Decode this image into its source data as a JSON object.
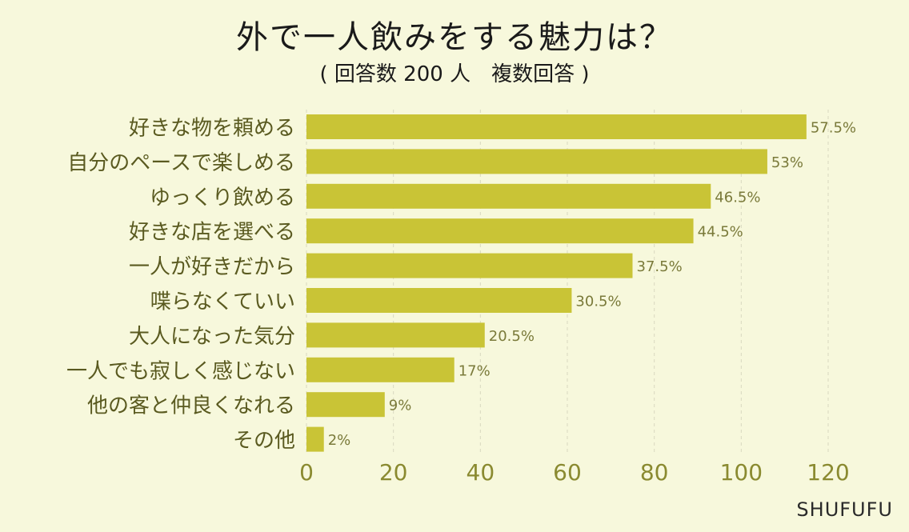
{
  "chart_data": {
    "type": "bar",
    "orientation": "horizontal",
    "title": "外で一人飲みをする魅力は？",
    "subtitle": "( 回答数 200 人　複数回答 )",
    "categories": [
      "好きな物を頼める",
      "自分のペースで楽しめる",
      "ゆっくり飲める",
      "好きな店を選べる",
      "一人が好きだから",
      "喋らなくていい",
      "大人になった気分",
      "一人でも寂しく感じない",
      "他の客と仲良くなれる",
      "その他"
    ],
    "values": [
      115,
      106,
      93,
      89,
      75,
      61,
      41,
      34,
      18,
      4
    ],
    "data_labels": [
      "57.5%",
      "53%",
      "46.5%",
      "44.5%",
      "37.5%",
      "30.5%",
      "20.5%",
      "17%",
      "9%",
      "2%"
    ],
    "xlim": [
      0,
      120
    ],
    "xticks": [
      "0",
      "20",
      "40",
      "60",
      "80",
      "100",
      "120"
    ],
    "grid": "vertical dashed",
    "bar_color": "#c9c436",
    "tick_color": "#8a8a30",
    "label_color": "#5a5a20"
  },
  "credit": "SHUFUFU"
}
